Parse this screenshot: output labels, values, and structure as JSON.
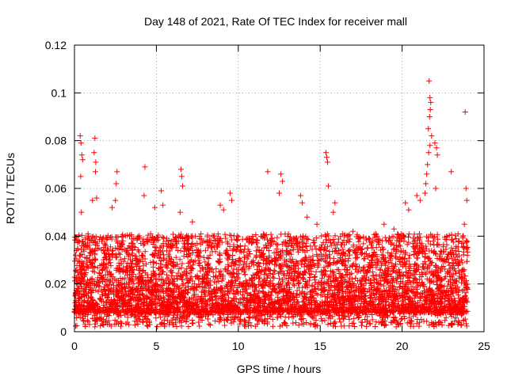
{
  "chart_data": {
    "type": "scatter",
    "title": "Day 148 of 2021, Rate Of TEC Index for receiver mall",
    "xlabel": "GPS time / hours",
    "ylabel": "ROTI / TECUs",
    "xlim": [
      0,
      25
    ],
    "ylim": [
      0,
      0.12
    ],
    "xticks": [
      0,
      5,
      10,
      15,
      20,
      25
    ],
    "xtick_labels": [
      "0",
      "5",
      "10",
      "15",
      "20",
      "25"
    ],
    "yticks": [
      0,
      0.02,
      0.04,
      0.06,
      0.08,
      0.1,
      0.12
    ],
    "ytick_labels": [
      "0",
      "0.02",
      "0.04",
      "0.06",
      "0.08",
      "0.1",
      "0.12"
    ],
    "grid": true,
    "marker": "+",
    "color": "#ff0000",
    "series": [
      {
        "name": "ROTI",
        "points": [
          [
            0.35,
            0.082
          ],
          [
            0.4,
            0.079
          ],
          [
            0.45,
            0.074
          ],
          [
            0.5,
            0.072
          ],
          [
            0.38,
            0.065
          ],
          [
            0.42,
            0.05
          ],
          [
            1.25,
            0.081
          ],
          [
            1.2,
            0.075
          ],
          [
            1.3,
            0.071
          ],
          [
            1.28,
            0.067
          ],
          [
            1.1,
            0.055
          ],
          [
            1.35,
            0.056
          ],
          [
            2.6,
            0.067
          ],
          [
            2.55,
            0.062
          ],
          [
            2.5,
            0.055
          ],
          [
            2.3,
            0.052
          ],
          [
            4.3,
            0.069
          ],
          [
            4.25,
            0.057
          ],
          [
            4.9,
            0.052
          ],
          [
            5.3,
            0.059
          ],
          [
            5.4,
            0.053
          ],
          [
            6.5,
            0.068
          ],
          [
            6.55,
            0.065
          ],
          [
            6.6,
            0.061
          ],
          [
            6.45,
            0.05
          ],
          [
            7.2,
            0.046
          ],
          [
            8.9,
            0.053
          ],
          [
            9.1,
            0.051
          ],
          [
            9.5,
            0.058
          ],
          [
            9.6,
            0.055
          ],
          [
            11.8,
            0.067
          ],
          [
            12.6,
            0.066
          ],
          [
            12.7,
            0.063
          ],
          [
            12.5,
            0.058
          ],
          [
            13.8,
            0.057
          ],
          [
            13.9,
            0.054
          ],
          [
            14.2,
            0.048
          ],
          [
            14.8,
            0.045
          ],
          [
            15.35,
            0.075
          ],
          [
            15.4,
            0.073
          ],
          [
            15.45,
            0.071
          ],
          [
            15.5,
            0.061
          ],
          [
            15.9,
            0.054
          ],
          [
            15.8,
            0.05
          ],
          [
            17.0,
            0.042
          ],
          [
            18.4,
            0.041
          ],
          [
            18.9,
            0.045
          ],
          [
            19.5,
            0.043
          ],
          [
            20.2,
            0.054
          ],
          [
            20.4,
            0.051
          ],
          [
            20.9,
            0.057
          ],
          [
            21.1,
            0.055
          ],
          [
            21.65,
            0.105
          ],
          [
            21.7,
            0.098
          ],
          [
            21.75,
            0.096
          ],
          [
            21.72,
            0.093
          ],
          [
            21.68,
            0.09
          ],
          [
            21.6,
            0.085
          ],
          [
            21.8,
            0.082
          ],
          [
            21.7,
            0.078
          ],
          [
            21.62,
            0.075
          ],
          [
            21.55,
            0.07
          ],
          [
            21.5,
            0.066
          ],
          [
            21.45,
            0.062
          ],
          [
            21.4,
            0.058
          ],
          [
            22.0,
            0.079
          ],
          [
            22.1,
            0.077
          ],
          [
            22.15,
            0.074
          ],
          [
            22.05,
            0.06
          ],
          [
            23.0,
            0.067
          ],
          [
            23.85,
            0.092
          ],
          [
            23.9,
            0.06
          ],
          [
            23.95,
            0.055
          ],
          [
            23.8,
            0.045
          ],
          [
            23.7,
            0.04
          ]
        ]
      }
    ],
    "background_cloud": {
      "description": "Dense band of ROTI values between roughly 0.003 and 0.035 TECU across the full day",
      "x_range": [
        0,
        24
      ],
      "y_range": [
        0.002,
        0.035
      ],
      "points_per_hour": 900
    }
  }
}
